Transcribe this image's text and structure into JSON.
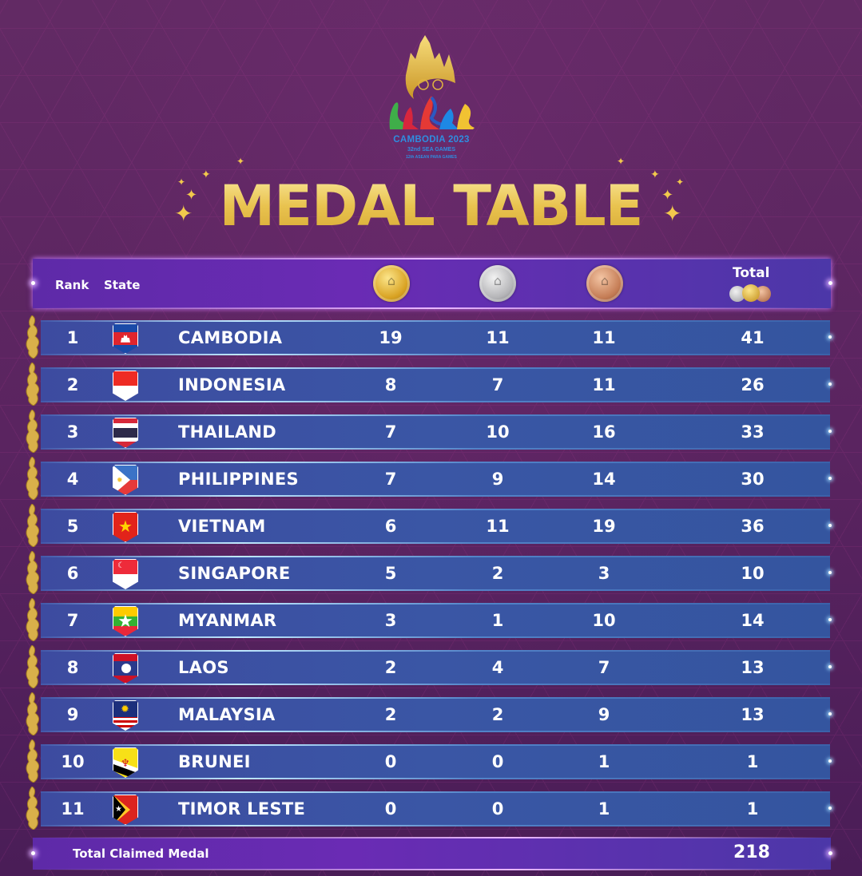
{
  "logo": {
    "title": "CAMBODIA 2023",
    "subtitle": "32nd SEA GAMES",
    "subtitle2": "12th ASEAN PARA GAMES"
  },
  "title": "MEDAL TABLE",
  "header": {
    "rank": "Rank",
    "state": "State",
    "gold_icon": "gold-medal-icon",
    "silver_icon": "silver-medal-icon",
    "bronze_icon": "bronze-medal-icon",
    "total": "Total"
  },
  "rows": [
    {
      "rank": "1",
      "country": "CAMBODIA",
      "flag": "cambodia",
      "gold": "19",
      "silver": "11",
      "bronze": "11",
      "total": "41"
    },
    {
      "rank": "2",
      "country": "INDONESIA",
      "flag": "indonesia",
      "gold": "8",
      "silver": "7",
      "bronze": "11",
      "total": "26"
    },
    {
      "rank": "3",
      "country": "THAILAND",
      "flag": "thailand",
      "gold": "7",
      "silver": "10",
      "bronze": "16",
      "total": "33"
    },
    {
      "rank": "4",
      "country": "PHILIPPINES",
      "flag": "philippines",
      "gold": "7",
      "silver": "9",
      "bronze": "14",
      "total": "30"
    },
    {
      "rank": "5",
      "country": "VIETNAM",
      "flag": "vietnam",
      "gold": "6",
      "silver": "11",
      "bronze": "19",
      "total": "36"
    },
    {
      "rank": "6",
      "country": "SINGAPORE",
      "flag": "singapore",
      "gold": "5",
      "silver": "2",
      "bronze": "3",
      "total": "10"
    },
    {
      "rank": "7",
      "country": "MYANMAR",
      "flag": "myanmar",
      "gold": "3",
      "silver": "1",
      "bronze": "10",
      "total": "14"
    },
    {
      "rank": "8",
      "country": "LAOS",
      "flag": "laos",
      "gold": "2",
      "silver": "4",
      "bronze": "7",
      "total": "13"
    },
    {
      "rank": "9",
      "country": "MALAYSIA",
      "flag": "malaysia",
      "gold": "2",
      "silver": "2",
      "bronze": "9",
      "total": "13"
    },
    {
      "rank": "10",
      "country": "BRUNEI",
      "flag": "brunei",
      "gold": "0",
      "silver": "0",
      "bronze": "1",
      "total": "1"
    },
    {
      "rank": "11",
      "country": "TIMOR LESTE",
      "flag": "timor-leste",
      "gold": "0",
      "silver": "0",
      "bronze": "1",
      "total": "1"
    }
  ],
  "footer": {
    "label": "Total Claimed Medal",
    "value": "218"
  },
  "colors": {
    "background": "#5d2660",
    "header_bar": "#6a2bb4",
    "row": "#3a56a5",
    "title_gold": "#e9c34f"
  },
  "chart_data": {
    "type": "table",
    "title": "MEDAL TABLE",
    "columns": [
      "Rank",
      "State",
      "Gold",
      "Silver",
      "Bronze",
      "Total"
    ],
    "rows": [
      [
        1,
        "CAMBODIA",
        19,
        11,
        11,
        41
      ],
      [
        2,
        "INDONESIA",
        8,
        7,
        11,
        26
      ],
      [
        3,
        "THAILAND",
        7,
        10,
        16,
        33
      ],
      [
        4,
        "PHILIPPINES",
        7,
        9,
        14,
        30
      ],
      [
        5,
        "VIETNAM",
        6,
        11,
        19,
        36
      ],
      [
        6,
        "SINGAPORE",
        5,
        2,
        3,
        10
      ],
      [
        7,
        "MYANMAR",
        3,
        1,
        10,
        14
      ],
      [
        8,
        "LAOS",
        2,
        4,
        7,
        13
      ],
      [
        9,
        "MALAYSIA",
        2,
        2,
        9,
        13
      ],
      [
        10,
        "BRUNEI",
        0,
        0,
        1,
        1
      ],
      [
        11,
        "TIMOR LESTE",
        0,
        0,
        1,
        1
      ]
    ],
    "footer": {
      "label": "Total Claimed Medal",
      "value": 218
    }
  }
}
